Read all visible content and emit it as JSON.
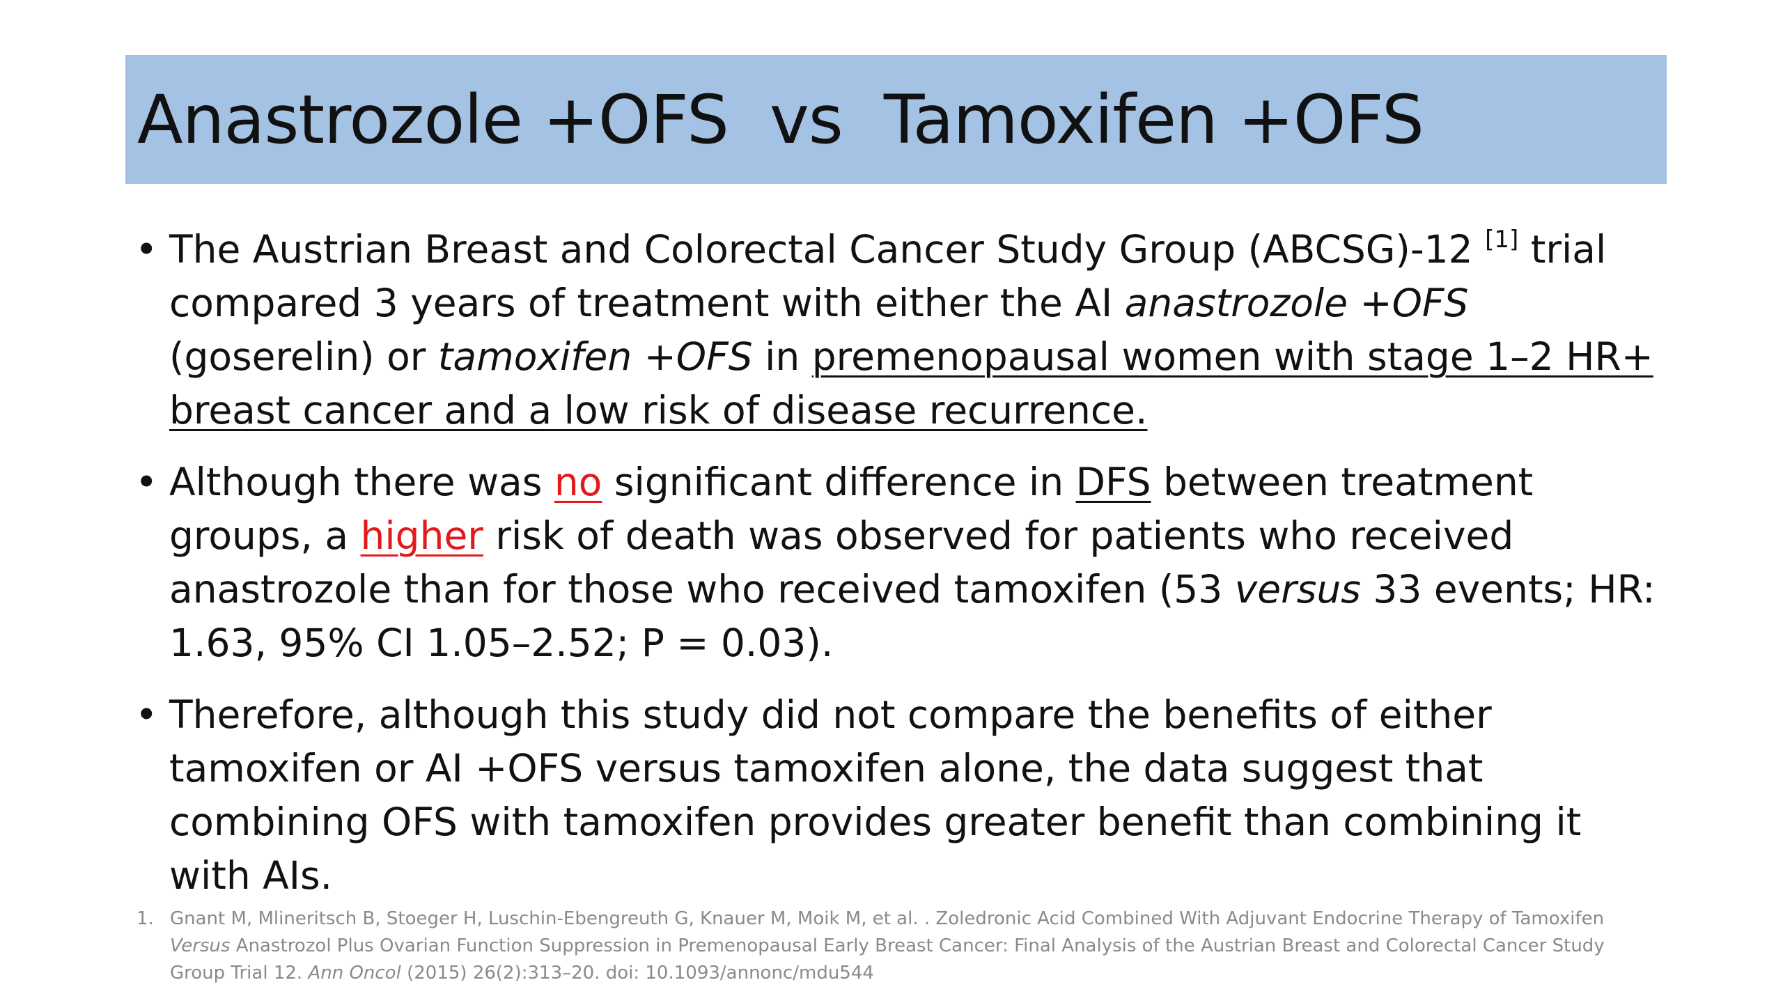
{
  "slide": {
    "title": "Anastrozole +OFS  vs  Tamoxifen +OFS",
    "bullet_symbol": "•",
    "bullets": [
      {
        "p1": "The Austrian Breast and Colorectal Cancer Study Group (ABCSG)-12 ",
        "ref": "[1]",
        "p2": " trial compared 3 years of treatment with either the AI ",
        "i1": "anastrozole +OFS",
        "p3": " (goserelin) or ",
        "i2": "tamoxifen +OFS",
        "p4": " in ",
        "u1": "premenopausal women with stage 1–2 HR+ breast cancer and a low risk of disease recurrence."
      },
      {
        "p1": "Although there was ",
        "red1": "no",
        "p2": " significant difference in ",
        "u1": "DFS",
        "p3": " between treatment groups, a ",
        "red2": "higher",
        "p4": " risk of death was observed for patients who received anastrozole than for those who received tamoxifen (53 ",
        "i1": "versus",
        "p5": " 33 events; HR: 1.63, 95% CI 1.05–2.52; P = 0.03)."
      },
      {
        "text": "Therefore, although this study did not compare the benefits of either tamoxifen or AI +OFS versus tamoxifen alone, the data suggest that combining OFS with tamoxifen provides greater benefit than combining it with AIs."
      }
    ],
    "footnote": {
      "number": "1.",
      "p1": "Gnant M, Mlineritsch B, Stoeger H, Luschin-Ebengreuth G, Knauer M, Moik M, et al. . Zoledronic Acid Combined With Adjuvant Endocrine Therapy of Tamoxifen ",
      "i1": "Versus",
      "p2": " Anastrozol Plus Ovarian Function Suppression in Premenopausal Early Breast Cancer: Final Analysis of the Austrian Breast and Colorectal Cancer Study Group Trial 12. ",
      "i2": "Ann Oncol",
      "p3": " (2015) 26(2):313–20. doi: 10.1093/annonc/mdu544"
    },
    "colors": {
      "title_band": "#a4c2e4",
      "emphasis_red": "#e3191c",
      "footnote_gray": "#8a8a8a"
    }
  }
}
